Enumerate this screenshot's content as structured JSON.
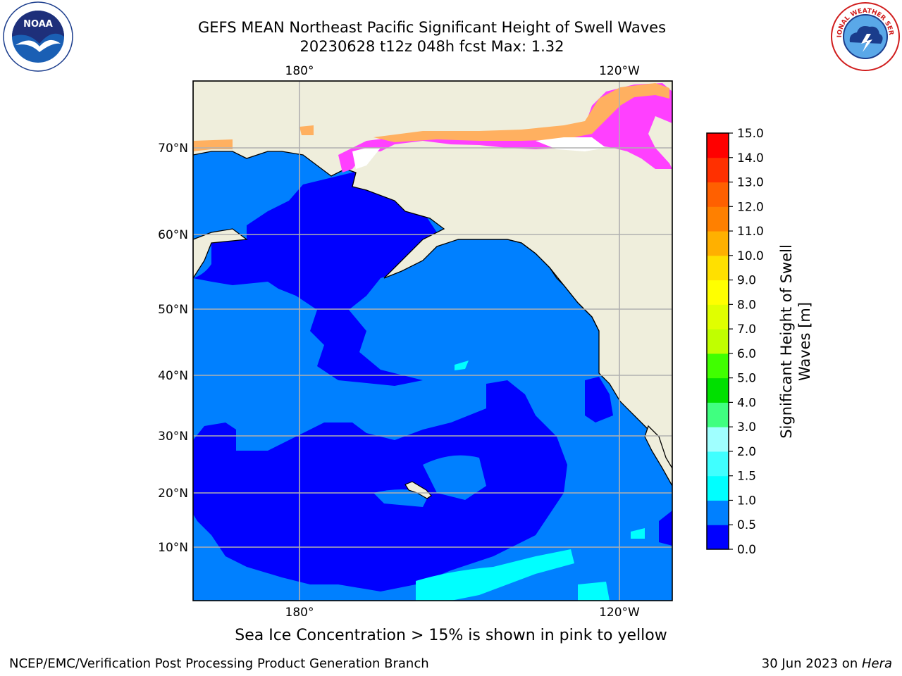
{
  "title": {
    "line1": "GEFS MEAN Northeast Pacific Significant Height of Swell Waves",
    "line2": "20230628 t12z 048h fcst   Max: 1.32"
  },
  "map": {
    "lon_labels": [
      "180°",
      "120°W"
    ],
    "lat_labels": [
      "70°N",
      "60°N",
      "50°N",
      "40°N",
      "30°N",
      "20°N",
      "10°N"
    ],
    "colors": {
      "land": "#efeedc",
      "ocean_deep": "#0000ff",
      "ocean_mid": "#0080ff",
      "ocean_cyan": "#00ffff",
      "grid": "#b0b0b0",
      "ice_pink": "#ff40ff",
      "ice_orange": "#ffb060",
      "ice_yellow": "#ffff80"
    }
  },
  "colorbar": {
    "title_line1": "Significant Height of Swell",
    "title_line2": "Waves [m]",
    "ticks": [
      "0.0",
      "0.5",
      "1.0",
      "1.5",
      "2.0",
      "3.0",
      "4.0",
      "5.0",
      "6.0",
      "7.0",
      "8.0",
      "9.0",
      "10.0",
      "11.0",
      "12.0",
      "13.0",
      "14.0",
      "15.0"
    ],
    "colors": [
      "#0000ff",
      "#0080ff",
      "#00ffff",
      "#40ffff",
      "#a0ffff",
      "#40ff80",
      "#00e000",
      "#40ff00",
      "#c0ff00",
      "#e0ff00",
      "#ffff00",
      "#ffe000",
      "#ffb000",
      "#ff8000",
      "#ff6000",
      "#ff3000",
      "#ff0000"
    ]
  },
  "ice_note": "Sea Ice Concentration > 15% is shown in pink to yellow",
  "footer": {
    "left": "NCEP/EMC/Verification Post Processing Product Generation Branch",
    "right_prefix": "30 Jun 2023 on ",
    "right_host": "Hera"
  },
  "logos": {
    "noaa_text": "NOAA",
    "nws_text": "NATIONAL WEATHER SERVICE"
  }
}
